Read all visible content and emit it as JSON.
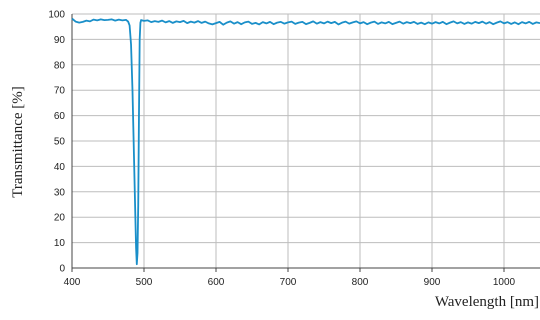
{
  "chart_data": {
    "type": "line",
    "xlabel": "Wavelength [nm]",
    "ylabel": "Transmittance [%]",
    "xlim": [
      400,
      1050
    ],
    "ylim": [
      0,
      100
    ],
    "x_ticks": [
      400,
      500,
      600,
      700,
      800,
      900,
      1000
    ],
    "y_ticks": [
      0,
      10,
      20,
      30,
      40,
      50,
      60,
      70,
      80,
      90,
      100
    ],
    "grid": true,
    "legend": "none",
    "series": [
      {
        "color": "#1a8fc9",
        "points": [
          [
            400,
            98.2
          ],
          [
            405,
            97.0
          ],
          [
            410,
            96.6
          ],
          [
            415,
            96.9
          ],
          [
            420,
            97.4
          ],
          [
            425,
            97.1
          ],
          [
            430,
            97.8
          ],
          [
            435,
            97.5
          ],
          [
            440,
            97.9
          ],
          [
            445,
            97.6
          ],
          [
            450,
            97.7
          ],
          [
            455,
            97.9
          ],
          [
            460,
            97.4
          ],
          [
            465,
            97.8
          ],
          [
            470,
            97.5
          ],
          [
            475,
            97.7
          ],
          [
            478,
            97.0
          ],
          [
            480,
            95.5
          ],
          [
            482,
            88.0
          ],
          [
            484,
            70.0
          ],
          [
            486,
            45.0
          ],
          [
            488,
            20.0
          ],
          [
            489,
            8.0
          ],
          [
            490,
            1.5
          ],
          [
            491,
            6.0
          ],
          [
            492,
            25.0
          ],
          [
            493,
            60.0
          ],
          [
            494,
            90.0
          ],
          [
            495,
            96.5
          ],
          [
            496,
            97.6
          ],
          [
            500,
            97.3
          ],
          [
            505,
            97.5
          ],
          [
            510,
            96.8
          ],
          [
            515,
            97.2
          ],
          [
            520,
            96.9
          ],
          [
            525,
            97.4
          ],
          [
            530,
            96.7
          ],
          [
            535,
            97.2
          ],
          [
            540,
            96.5
          ],
          [
            545,
            97.1
          ],
          [
            550,
            96.8
          ],
          [
            555,
            97.3
          ],
          [
            560,
            96.4
          ],
          [
            565,
            97.0
          ],
          [
            570,
            96.6
          ],
          [
            575,
            97.2
          ],
          [
            580,
            96.5
          ],
          [
            585,
            97.0
          ],
          [
            590,
            96.3
          ],
          [
            595,
            95.9
          ],
          [
            600,
            96.4
          ],
          [
            605,
            96.9
          ],
          [
            610,
            95.8
          ],
          [
            615,
            96.6
          ],
          [
            620,
            97.1
          ],
          [
            625,
            96.2
          ],
          [
            630,
            96.8
          ],
          [
            635,
            96.0
          ],
          [
            640,
            96.7
          ],
          [
            645,
            97.0
          ],
          [
            650,
            96.1
          ],
          [
            655,
            96.5
          ],
          [
            660,
            95.9
          ],
          [
            665,
            96.8
          ],
          [
            670,
            96.3
          ],
          [
            675,
            96.9
          ],
          [
            680,
            96.0
          ],
          [
            685,
            96.6
          ],
          [
            690,
            96.9
          ],
          [
            695,
            96.2
          ],
          [
            700,
            96.7
          ],
          [
            705,
            97.0
          ],
          [
            710,
            96.1
          ],
          [
            715,
            96.6
          ],
          [
            720,
            96.9
          ],
          [
            725,
            96.0
          ],
          [
            730,
            96.5
          ],
          [
            735,
            97.1
          ],
          [
            740,
            96.2
          ],
          [
            745,
            96.8
          ],
          [
            750,
            96.3
          ],
          [
            755,
            97.0
          ],
          [
            760,
            96.4
          ],
          [
            765,
            96.9
          ],
          [
            770,
            95.9
          ],
          [
            775,
            96.6
          ],
          [
            780,
            97.0
          ],
          [
            785,
            96.2
          ],
          [
            790,
            96.7
          ],
          [
            795,
            97.1
          ],
          [
            800,
            96.3
          ],
          [
            805,
            96.8
          ],
          [
            810,
            96.0
          ],
          [
            815,
            96.6
          ],
          [
            820,
            97.0
          ],
          [
            825,
            96.1
          ],
          [
            830,
            96.7
          ],
          [
            835,
            96.3
          ],
          [
            840,
            96.9
          ],
          [
            845,
            96.0
          ],
          [
            850,
            96.5
          ],
          [
            855,
            97.0
          ],
          [
            860,
            96.2
          ],
          [
            865,
            96.8
          ],
          [
            870,
            96.4
          ],
          [
            875,
            96.9
          ],
          [
            880,
            96.1
          ],
          [
            885,
            96.6
          ],
          [
            890,
            96.0
          ],
          [
            895,
            96.7
          ],
          [
            900,
            96.2
          ],
          [
            905,
            96.8
          ],
          [
            910,
            96.3
          ],
          [
            915,
            96.9
          ],
          [
            920,
            96.0
          ],
          [
            925,
            96.6
          ],
          [
            930,
            97.1
          ],
          [
            935,
            96.3
          ],
          [
            940,
            96.8
          ],
          [
            945,
            96.1
          ],
          [
            950,
            96.7
          ],
          [
            955,
            96.2
          ],
          [
            960,
            96.9
          ],
          [
            965,
            96.4
          ],
          [
            970,
            97.0
          ],
          [
            975,
            96.2
          ],
          [
            980,
            96.8
          ],
          [
            985,
            96.0
          ],
          [
            990,
            96.6
          ],
          [
            995,
            97.1
          ],
          [
            1000,
            96.3
          ],
          [
            1005,
            96.8
          ],
          [
            1010,
            96.1
          ],
          [
            1015,
            96.7
          ],
          [
            1020,
            96.0
          ],
          [
            1025,
            96.8
          ],
          [
            1030,
            96.3
          ],
          [
            1035,
            96.9
          ],
          [
            1040,
            96.1
          ],
          [
            1045,
            96.7
          ],
          [
            1050,
            96.4
          ]
        ]
      }
    ]
  }
}
